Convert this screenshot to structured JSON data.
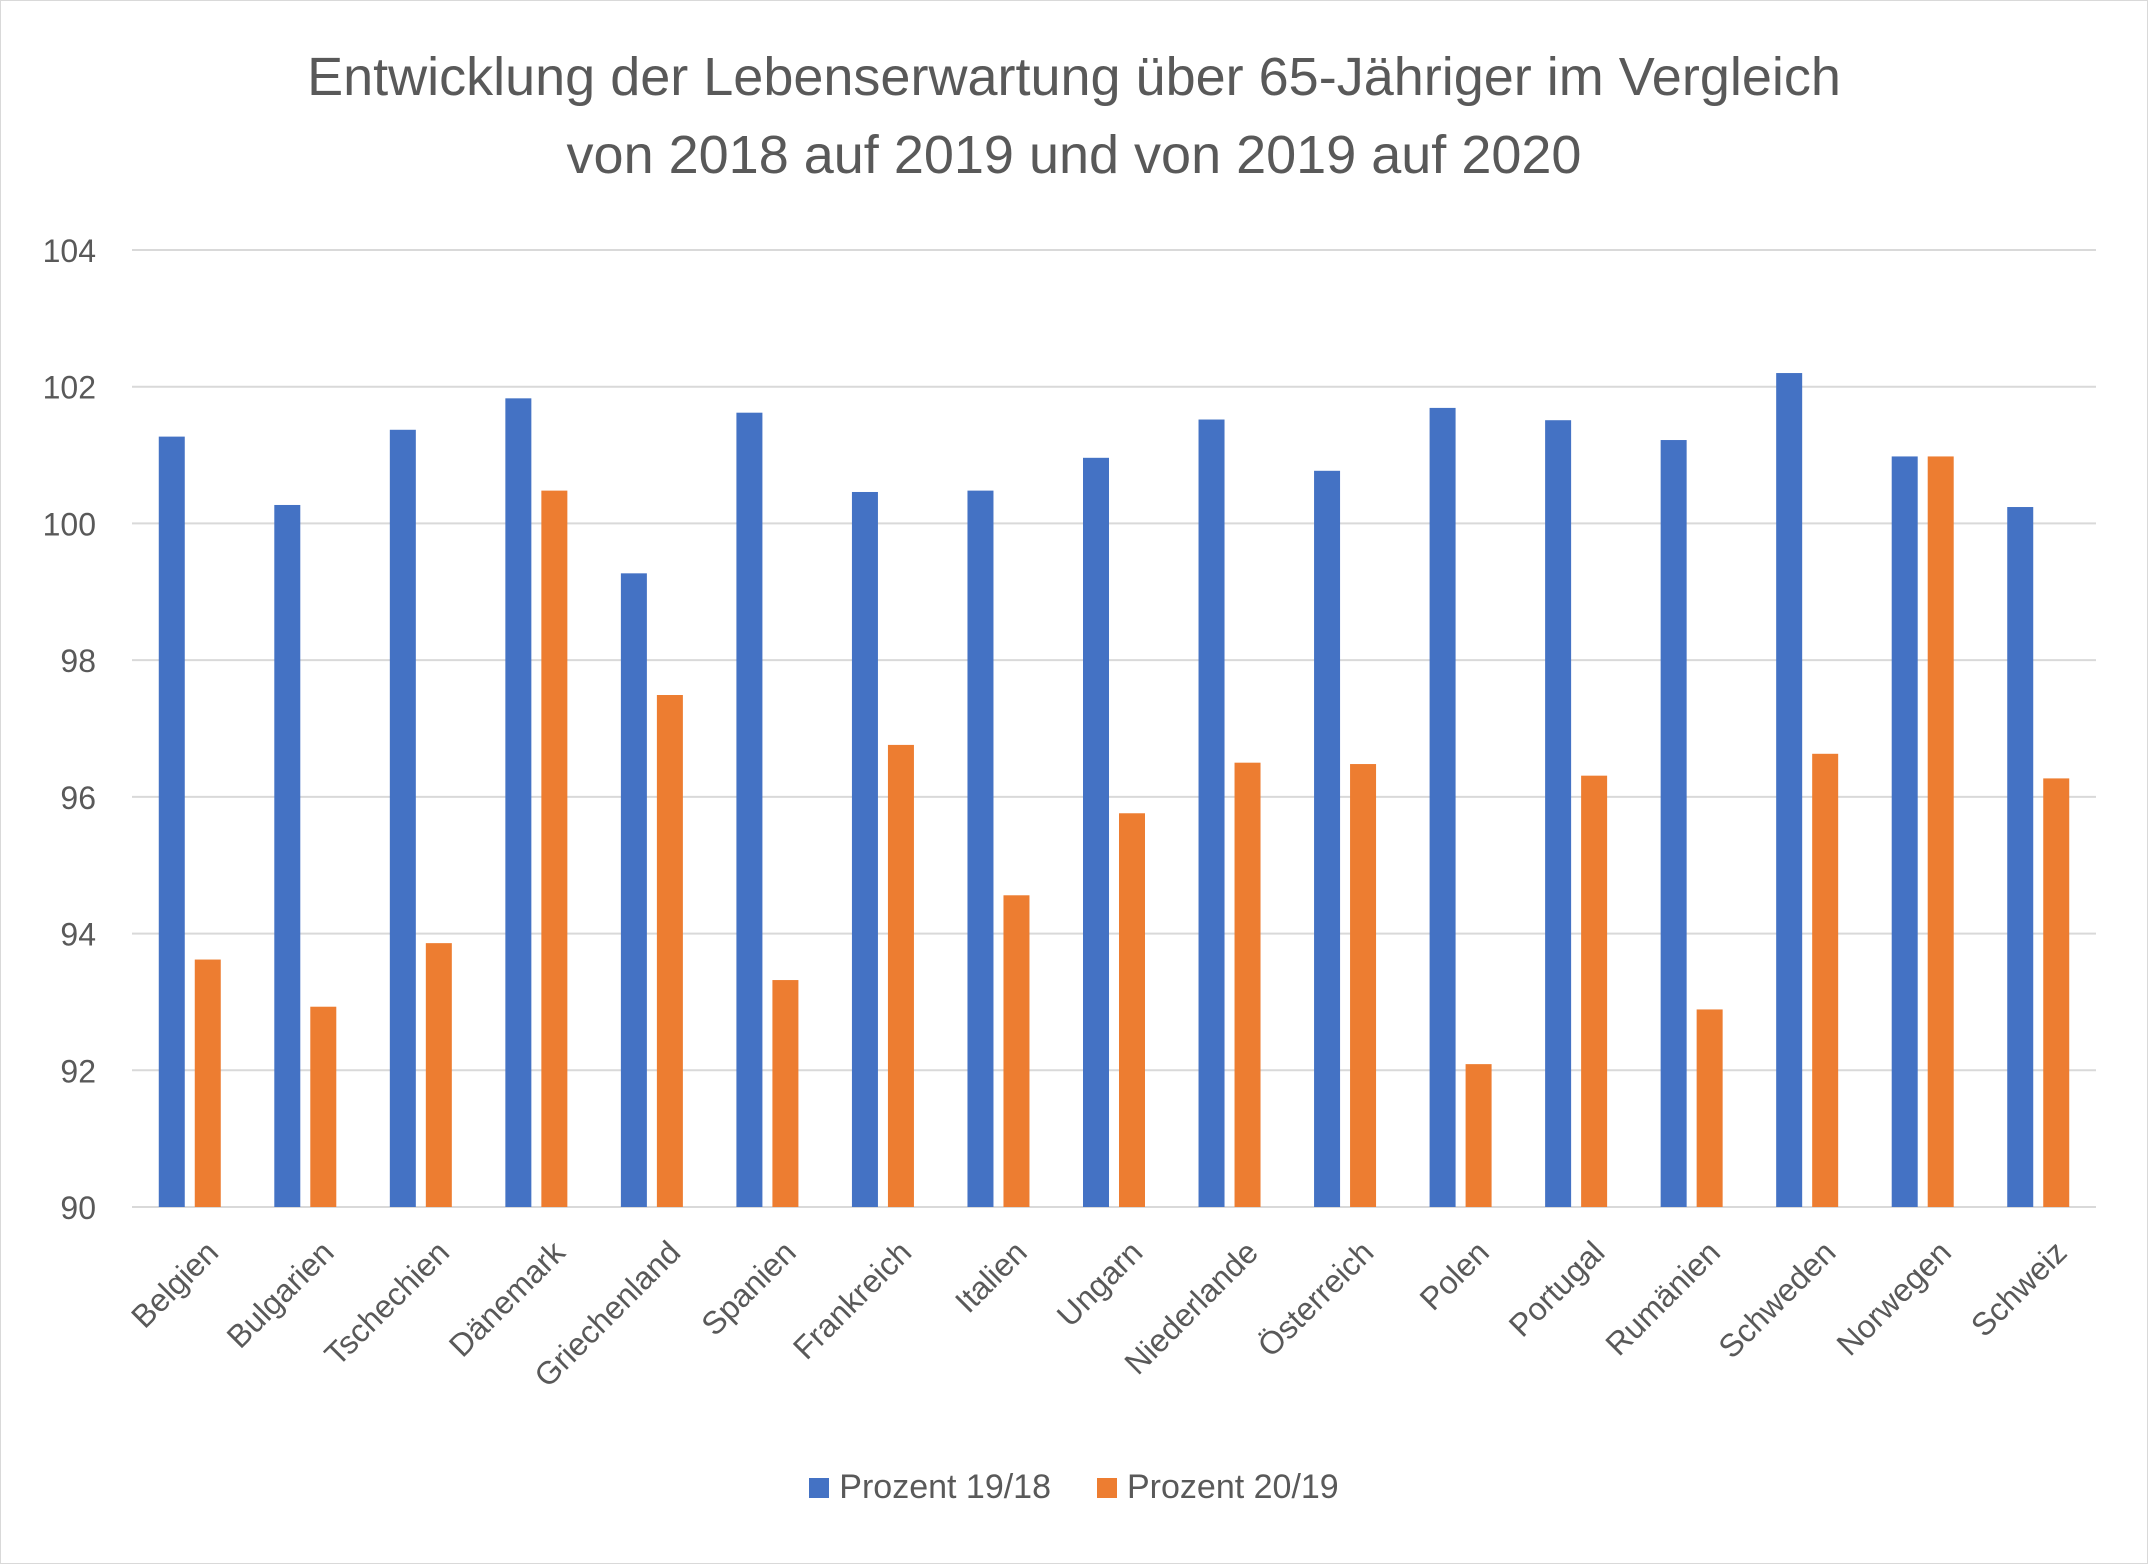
{
  "chart_data": {
    "type": "bar",
    "title_lines": [
      "Entwicklung der Lebenserwartung über 65-Jähriger im Vergleich",
      "von 2018 auf 2019 und von 2019 auf 2020"
    ],
    "categories": [
      "Belgien",
      "Bulgarien",
      "Tschechien",
      "Dänemark",
      "Griechenland",
      "Spanien",
      "Frankreich",
      "Italien",
      "Ungarn",
      "Niederlande",
      "Österreich",
      "Polen",
      "Portugal",
      "Rumänien",
      "Schweden",
      "Norwegen",
      "Schweiz"
    ],
    "series": [
      {
        "name": "Prozent 19/18",
        "color": "#4472c4",
        "values": [
          101.27,
          100.27,
          101.37,
          101.83,
          99.27,
          101.62,
          100.46,
          100.48,
          100.96,
          101.52,
          100.77,
          101.69,
          101.51,
          101.22,
          102.2,
          100.98,
          100.24
        ]
      },
      {
        "name": "Prozent 20/19",
        "color": "#ed7d31",
        "values": [
          93.62,
          92.93,
          93.86,
          100.48,
          97.49,
          93.32,
          96.76,
          94.56,
          95.76,
          96.5,
          96.48,
          92.09,
          96.31,
          92.89,
          96.63,
          100.98,
          96.27
        ]
      }
    ],
    "ylim": [
      90,
      104
    ],
    "yticks": [
      90,
      92,
      94,
      96,
      98,
      100,
      102,
      104
    ],
    "grid": true,
    "legend_position": "bottom",
    "gridline_color": "#d9d9d9",
    "text_color": "#595959"
  }
}
